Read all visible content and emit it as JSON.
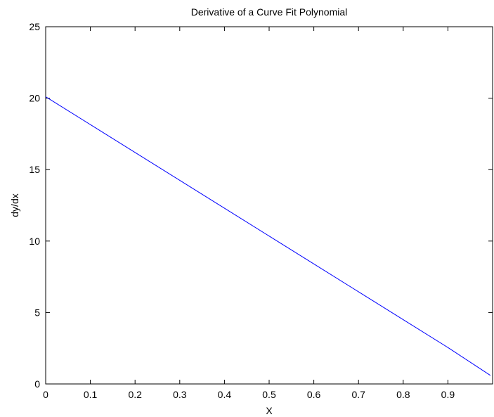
{
  "chart_data": {
    "type": "line",
    "title": "Derivative of a Curve Fit Polynomial",
    "xlabel": "X",
    "ylabel": "dy/dx",
    "xlim": [
      0,
      1
    ],
    "ylim": [
      0,
      25
    ],
    "x_ticks": [
      0,
      0.1,
      0.2,
      0.3,
      0.4,
      0.5,
      0.6,
      0.7,
      0.8,
      0.9
    ],
    "x_tick_labels": [
      "0",
      "0.1",
      "0.2",
      "0.3",
      "0.4",
      "0.5",
      "0.6",
      "0.7",
      "0.8",
      "0.9"
    ],
    "y_ticks": [
      0,
      5,
      10,
      15,
      20,
      25
    ],
    "y_tick_labels": [
      "0",
      "5",
      "10",
      "15",
      "20",
      "25"
    ],
    "grid": false,
    "legend": "none",
    "series": [
      {
        "color": "#0000ff",
        "x": [
          0,
          0.1,
          0.2,
          0.3,
          0.4,
          0.5,
          0.6,
          0.7,
          0.8,
          0.9,
          0.995
        ],
        "y": [
          20.1,
          18.15,
          16.2,
          14.25,
          12.3,
          10.35,
          8.4,
          6.45,
          4.5,
          2.55,
          0.6
        ]
      }
    ]
  }
}
